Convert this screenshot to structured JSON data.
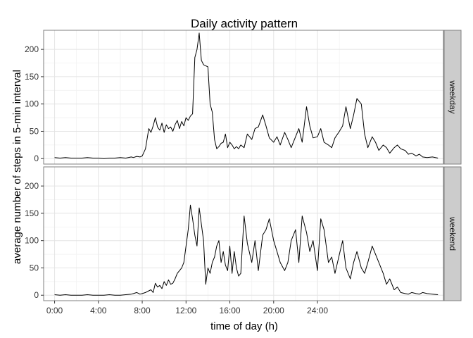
{
  "chart_data": {
    "type": "line",
    "title": "Daily activity pattern",
    "xlabel": "time of day (h)",
    "ylabel": "average number of steps in 5-min interval",
    "xlim": [
      -1,
      35.5
    ],
    "ylim": [
      -10,
      235
    ],
    "x_ticks": [
      {
        "value": 0,
        "label": "0:00"
      },
      {
        "value": 4,
        "label": "4:00"
      },
      {
        "value": 8,
        "label": "8:00"
      },
      {
        "value": 12,
        "label": "12:00"
      },
      {
        "value": 16,
        "label": "16:00"
      },
      {
        "value": 20,
        "label": "20:00"
      },
      {
        "value": 24,
        "label": "24:00"
      }
    ],
    "y_ticks": [
      0,
      50,
      100,
      150,
      200
    ],
    "grid": true,
    "facets": [
      {
        "name": "weekday",
        "x": [
          0,
          0.5,
          1,
          1.5,
          2,
          2.5,
          3,
          3.5,
          4,
          4.5,
          5,
          5.5,
          6,
          6.5,
          7,
          7.2,
          7.5,
          7.8,
          8,
          8.3,
          8.6,
          8.8,
          9,
          9.2,
          9.4,
          9.6,
          9.8,
          10,
          10.2,
          10.4,
          10.6,
          10.8,
          11,
          11.2,
          11.4,
          11.6,
          11.8,
          12,
          12.2,
          12.4,
          12.6,
          12.8,
          13,
          13.2,
          13.4,
          13.6,
          13.8,
          14,
          14.2,
          14.4,
          14.6,
          14.8,
          15,
          15.2,
          15.4,
          15.6,
          15.8,
          16,
          16.2,
          16.4,
          16.6,
          16.8,
          17,
          17.3,
          17.6,
          18,
          18.3,
          18.6,
          19,
          19.3,
          19.6,
          20,
          20.3,
          20.6,
          21,
          21.3,
          21.6,
          22,
          22.3,
          22.6,
          23,
          23.3,
          23.6,
          24,
          24.3,
          24.6,
          25,
          25.3,
          25.6,
          26,
          26.3,
          26.6,
          27,
          27.3,
          27.6,
          28,
          28.3,
          28.6,
          29,
          29.3,
          29.6,
          30,
          30.3,
          30.6,
          31,
          31.3,
          31.6,
          32,
          32.3,
          32.6,
          33,
          33.3,
          33.6,
          34,
          34.5,
          35
        ],
        "y": [
          2,
          1,
          2,
          1,
          1,
          1,
          2,
          1,
          1,
          0,
          1,
          1,
          2,
          1,
          3,
          2,
          4,
          3,
          5,
          18,
          55,
          48,
          60,
          75,
          58,
          52,
          65,
          48,
          62,
          55,
          58,
          50,
          62,
          70,
          55,
          68,
          60,
          75,
          70,
          78,
          82,
          185,
          200,
          230,
          180,
          172,
          170,
          168,
          100,
          85,
          35,
          18,
          22,
          28,
          30,
          45,
          20,
          30,
          25,
          18,
          22,
          18,
          25,
          20,
          45,
          35,
          55,
          58,
          80,
          60,
          38,
          30,
          40,
          25,
          48,
          35,
          20,
          40,
          55,
          30,
          95,
          60,
          38,
          40,
          55,
          30,
          25,
          20,
          38,
          50,
          60,
          95,
          55,
          80,
          110,
          100,
          45,
          20,
          40,
          30,
          15,
          25,
          20,
          10,
          20,
          25,
          18,
          15,
          8,
          10,
          5,
          8,
          3,
          2,
          3,
          1
        ],
        "strip": "weekday"
      },
      {
        "name": "weekend",
        "x": [
          0,
          0.5,
          1,
          1.5,
          2,
          2.5,
          3,
          3.5,
          4,
          4.5,
          5,
          5.5,
          6,
          6.5,
          7,
          7.2,
          7.5,
          7.8,
          8,
          8.3,
          8.6,
          8.8,
          9,
          9.2,
          9.4,
          9.6,
          9.8,
          10,
          10.2,
          10.4,
          10.6,
          10.8,
          11,
          11.2,
          11.4,
          11.6,
          11.8,
          12,
          12.2,
          12.4,
          12.6,
          12.8,
          13,
          13.2,
          13.4,
          13.6,
          13.8,
          14,
          14.2,
          14.4,
          14.6,
          14.8,
          15,
          15.2,
          15.4,
          15.6,
          15.8,
          16,
          16.2,
          16.4,
          16.6,
          16.8,
          17,
          17.3,
          17.6,
          18,
          18.3,
          18.6,
          19,
          19.3,
          19.6,
          20,
          20.3,
          20.6,
          21,
          21.3,
          21.6,
          22,
          22.3,
          22.6,
          23,
          23.3,
          23.6,
          24,
          24.3,
          24.6,
          25,
          25.3,
          25.6,
          26,
          26.3,
          26.6,
          27,
          27.3,
          27.6,
          28,
          28.3,
          28.6,
          29,
          29.3,
          29.6,
          30,
          30.3,
          30.6,
          31,
          31.3,
          31.6,
          32,
          32.3,
          32.6,
          33,
          33.3,
          33.6,
          34,
          34.5,
          35
        ],
        "y": [
          1,
          0,
          1,
          0,
          0,
          0,
          1,
          0,
          0,
          0,
          1,
          0,
          0,
          1,
          2,
          3,
          5,
          2,
          3,
          5,
          8,
          10,
          5,
          22,
          15,
          18,
          12,
          25,
          18,
          28,
          20,
          22,
          30,
          40,
          45,
          50,
          60,
          90,
          120,
          165,
          140,
          110,
          90,
          160,
          130,
          100,
          20,
          50,
          40,
          60,
          70,
          90,
          100,
          60,
          80,
          55,
          45,
          90,
          40,
          80,
          50,
          35,
          40,
          145,
          95,
          60,
          100,
          45,
          110,
          120,
          140,
          100,
          80,
          60,
          45,
          60,
          100,
          120,
          60,
          145,
          115,
          80,
          100,
          45,
          140,
          120,
          60,
          70,
          40,
          75,
          100,
          50,
          30,
          60,
          80,
          50,
          40,
          60,
          90,
          75,
          60,
          40,
          20,
          30,
          10,
          15,
          5,
          3,
          2,
          5,
          3,
          2,
          5,
          3,
          2,
          1
        ],
        "strip": "weekend"
      }
    ]
  }
}
